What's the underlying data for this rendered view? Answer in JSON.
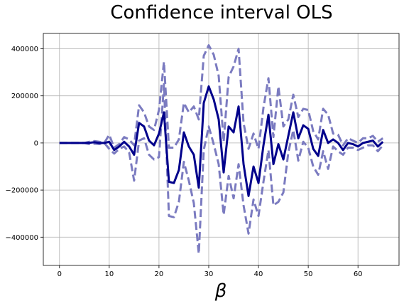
{
  "chart_data": {
    "type": "line",
    "title": "Confidence interval OLS",
    "xlabel": "β",
    "ylabel": "",
    "xlim": [
      -3.25,
      68.25
    ],
    "ylim": [
      -520000,
      465000
    ],
    "x_ticks": [
      0,
      10,
      20,
      30,
      40,
      50,
      60
    ],
    "y_ticks": [
      -400000,
      -200000,
      0,
      200000,
      400000
    ],
    "grid": true,
    "x": [
      0,
      1,
      2,
      3,
      4,
      5,
      6,
      7,
      8,
      9,
      10,
      11,
      12,
      13,
      14,
      15,
      16,
      17,
      18,
      19,
      20,
      21,
      22,
      23,
      24,
      25,
      26,
      27,
      28,
      29,
      30,
      31,
      32,
      33,
      34,
      35,
      36,
      37,
      38,
      39,
      40,
      41,
      42,
      43,
      44,
      45,
      46,
      47,
      48,
      49,
      50,
      51,
      52,
      53,
      54,
      55,
      56,
      57,
      58,
      59,
      60,
      61,
      62,
      63,
      64,
      65
    ],
    "series": [
      {
        "color": "#00008b",
        "style": "solid",
        "values": [
          0,
          0,
          0,
          0,
          0,
          0,
          1000,
          3000,
          0,
          0,
          5000,
          -30000,
          -15000,
          5000,
          -15000,
          -50000,
          85000,
          70000,
          10000,
          -10000,
          40000,
          130000,
          -165000,
          -170000,
          -115000,
          45000,
          -15000,
          -50000,
          -190000,
          170000,
          240000,
          185000,
          100000,
          -125000,
          70000,
          45000,
          155000,
          -90000,
          -225000,
          -100000,
          -170000,
          -10000,
          120000,
          -90000,
          -5000,
          -70000,
          30000,
          130000,
          20000,
          75000,
          60000,
          -25000,
          -55000,
          55000,
          0,
          15000,
          0,
          -30000,
          0,
          -5000,
          -15000,
          0,
          5000,
          10000,
          -15000,
          5000
        ]
      },
      {
        "color": "#7b7bc0",
        "style": "dashed",
        "values": [
          0,
          0,
          0,
          0,
          0,
          0,
          5000,
          8000,
          5000,
          0,
          35000,
          -20000,
          -5000,
          25000,
          15000,
          -10000,
          160000,
          130000,
          70000,
          55000,
          140000,
          345000,
          -20000,
          -20000,
          15000,
          170000,
          130000,
          155000,
          100000,
          370000,
          415000,
          375000,
          285000,
          5000,
          280000,
          325000,
          400000,
          85000,
          -25000,
          40000,
          -25000,
          150000,
          275000,
          25000,
          240000,
          70000,
          100000,
          205000,
          110000,
          145000,
          140000,
          50000,
          15000,
          145000,
          120000,
          40000,
          35000,
          -10000,
          20000,
          10000,
          0,
          20000,
          20000,
          30000,
          5000,
          20000
        ]
      },
      {
        "color": "#7b7bc0",
        "style": "dashed",
        "values": [
          0,
          0,
          0,
          0,
          0,
          0,
          -5000,
          -3000,
          -5000,
          0,
          -25000,
          -45000,
          -25000,
          -15000,
          -40000,
          -160000,
          10000,
          20000,
          -50000,
          -70000,
          -60000,
          250000,
          -310000,
          -315000,
          -250000,
          -80000,
          -160000,
          -255000,
          -470000,
          -30000,
          70000,
          -5000,
          -90000,
          -305000,
          -140000,
          -235000,
          -90000,
          -265000,
          -385000,
          -240000,
          -310000,
          -165000,
          -30000,
          -265000,
          -250000,
          -210000,
          -40000,
          55000,
          -75000,
          5000,
          -20000,
          -100000,
          -135000,
          -35000,
          -110000,
          -15000,
          -35000,
          -50000,
          -20000,
          -20000,
          -30000,
          -20000,
          -10000,
          -10000,
          -35000,
          -10000
        ]
      }
    ]
  }
}
